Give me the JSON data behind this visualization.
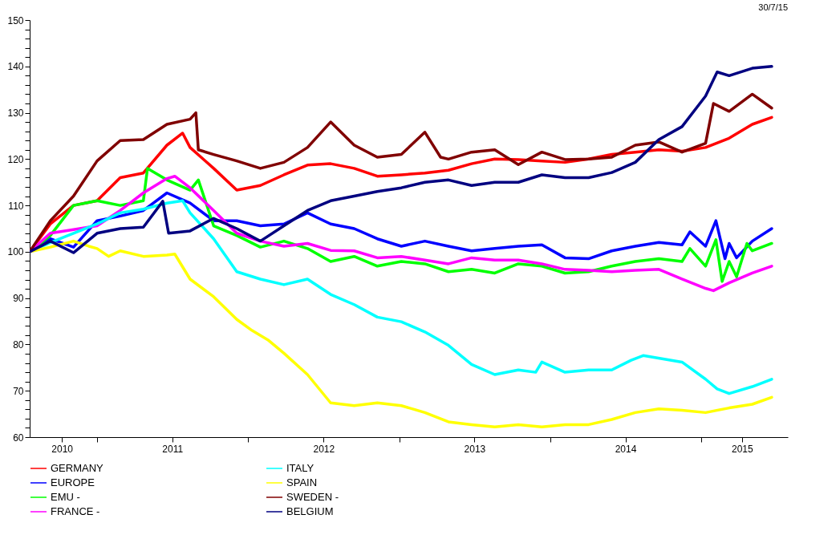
{
  "chart_data": {
    "type": "line",
    "annotations": [
      "30/7/15"
    ],
    "xlim": [
      "2010-07-22",
      "2015-07-30"
    ],
    "xticks": [
      {
        "value": "2011-01-01",
        "label": null
      },
      {
        "value": "2012-01-01",
        "label": null
      },
      {
        "value": "2013-01-01",
        "label": null
      },
      {
        "value": "2014-01-01",
        "label": null
      },
      {
        "value": "2015-01-01",
        "label": null
      },
      {
        "value": "2010-10-08",
        "label": "2010"
      },
      {
        "value": "2011-07-02",
        "label": "2011"
      },
      {
        "value": "2012-07-02",
        "label": "2012"
      },
      {
        "value": "2013-07-02",
        "label": "2013"
      },
      {
        "value": "2014-07-02",
        "label": "2014"
      },
      {
        "value": "2015-04-10",
        "label": "2015"
      }
    ],
    "ylim": [
      60,
      150
    ],
    "yticks": [
      60,
      {
        "value": 62,
        "label": null
      },
      {
        "value": 64,
        "label": null
      },
      {
        "value": 66,
        "label": null
      },
      {
        "value": 68,
        "label": null
      },
      70,
      {
        "value": 72,
        "label": null
      },
      {
        "value": 74,
        "label": null
      },
      {
        "value": 76,
        "label": null
      },
      {
        "value": 78,
        "label": null
      },
      80,
      {
        "value": 82,
        "label": null
      },
      {
        "value": 84,
        "label": null
      },
      {
        "value": 86,
        "label": null
      },
      {
        "value": 88,
        "label": null
      },
      90,
      {
        "value": 92,
        "label": null
      },
      {
        "value": 94,
        "label": null
      },
      {
        "value": 96,
        "label": null
      },
      {
        "value": 98,
        "label": null
      },
      100,
      {
        "value": 102,
        "label": null
      },
      {
        "value": 104,
        "label": null
      },
      {
        "value": 106,
        "label": null
      },
      {
        "value": 108,
        "label": null
      },
      110,
      {
        "value": 112,
        "label": null
      },
      {
        "value": 114,
        "label": null
      },
      {
        "value": 116,
        "label": null
      },
      {
        "value": 118,
        "label": null
      },
      120,
      {
        "value": 122,
        "label": null
      },
      {
        "value": 124,
        "label": null
      },
      {
        "value": 126,
        "label": null
      },
      {
        "value": 128,
        "label": null
      },
      130,
      {
        "value": 132,
        "label": null
      },
      {
        "value": 134,
        "label": null
      },
      {
        "value": 136,
        "label": null
      },
      {
        "value": 138,
        "label": null
      },
      140,
      {
        "value": 142,
        "label": null
      },
      {
        "value": 144,
        "label": null
      },
      {
        "value": 146,
        "label": null
      },
      {
        "value": 148,
        "label": null
      },
      150
    ],
    "grid": false,
    "legend": "bottom",
    "series": [
      {
        "name": "GERMANY",
        "color": "#ff0000",
        "x": [
          "2010-07-22",
          "2010-09-10",
          "2010-11-05",
          "2011-01-01",
          "2011-02-26",
          "2011-04-23",
          "2011-06-19",
          "2011-07-27",
          "2011-08-14",
          "2011-10-10",
          "2011-12-05",
          "2012-01-31",
          "2012-03-28",
          "2012-05-24",
          "2012-07-19",
          "2012-09-14",
          "2012-11-09",
          "2013-01-06",
          "2013-03-04",
          "2013-04-30",
          "2013-06-25",
          "2013-08-20",
          "2013-10-16",
          "2013-12-12",
          "2014-02-06",
          "2014-04-04",
          "2014-05-30",
          "2014-07-26",
          "2014-09-21",
          "2014-11-16",
          "2015-01-12",
          "2015-03-10",
          "2015-05-05",
          "2015-06-21"
        ],
        "values": [
          100,
          106,
          110,
          111,
          116,
          117,
          123,
          125.6,
          122.5,
          118,
          113.3,
          114.3,
          116.6,
          118.7,
          119,
          118,
          116.3,
          116.6,
          117,
          117.6,
          119,
          120,
          119.9,
          119.6,
          119.3,
          120,
          121,
          121.5,
          122,
          121.7,
          122.5,
          124.5,
          127.5,
          129
        ]
      },
      {
        "name": "EUROPE",
        "color": "#0000ff",
        "x": [
          "2010-07-22",
          "2010-09-10",
          "2010-11-05",
          "2011-01-01",
          "2011-02-26",
          "2011-04-23",
          "2011-06-19",
          "2011-08-14",
          "2011-10-10",
          "2011-12-05",
          "2012-01-31",
          "2012-03-28",
          "2012-05-24",
          "2012-07-19",
          "2012-09-14",
          "2012-11-09",
          "2013-01-06",
          "2013-03-04",
          "2013-04-30",
          "2013-06-25",
          "2013-08-20",
          "2013-10-16",
          "2013-12-12",
          "2014-02-06",
          "2014-04-04",
          "2014-05-30",
          "2014-07-26",
          "2014-09-21",
          "2014-11-16",
          "2014-12-05",
          "2015-01-12",
          "2015-02-06",
          "2015-02-28",
          "2015-03-10",
          "2015-03-28",
          "2015-05-05",
          "2015-06-21"
        ],
        "values": [
          100,
          102.8,
          101,
          106.7,
          107.7,
          108.9,
          112.7,
          110.5,
          106.7,
          106.7,
          105.6,
          106,
          108.4,
          106,
          105,
          102.8,
          101.2,
          102.3,
          101.2,
          100.2,
          100.7,
          101.2,
          101.5,
          98.7,
          98.5,
          100.2,
          101.2,
          102,
          101.5,
          104.3,
          101.2,
          106.7,
          98.5,
          101.8,
          98.7,
          102.3,
          105
        ]
      },
      {
        "name": "EMU -",
        "color": "#00ff00",
        "x": [
          "2010-07-22",
          "2010-09-10",
          "2010-11-05",
          "2011-01-01",
          "2011-02-26",
          "2011-04-23",
          "2011-05-03",
          "2011-06-19",
          "2011-08-14",
          "2011-09-03",
          "2011-10-10",
          "2011-12-05",
          "2012-01-31",
          "2012-03-28",
          "2012-05-24",
          "2012-07-19",
          "2012-09-14",
          "2012-11-09",
          "2013-01-06",
          "2013-03-04",
          "2013-04-30",
          "2013-06-25",
          "2013-08-20",
          "2013-10-16",
          "2013-12-12",
          "2014-02-06",
          "2014-04-04",
          "2014-05-30",
          "2014-07-26",
          "2014-09-21",
          "2014-11-16",
          "2014-12-05",
          "2015-01-12",
          "2015-02-06",
          "2015-02-21",
          "2015-03-10",
          "2015-03-28",
          "2015-04-22",
          "2015-05-05",
          "2015-06-21"
        ],
        "values": [
          100,
          103.5,
          110,
          111,
          110,
          111,
          118,
          115.5,
          113.3,
          115.5,
          105.6,
          103.5,
          101,
          102.3,
          100.7,
          97.9,
          99,
          96.9,
          97.9,
          97.4,
          95.7,
          96.2,
          95.4,
          97.4,
          96.9,
          95.4,
          95.7,
          96.9,
          97.9,
          98.5,
          97.9,
          100.7,
          96.9,
          102.6,
          93.6,
          97.9,
          94.6,
          101.8,
          100.2,
          101.8
        ]
      },
      {
        "name": "FRANCE -",
        "color": "#ff00ff",
        "x": [
          "2010-07-22",
          "2010-09-10",
          "2010-11-05",
          "2011-01-01",
          "2011-02-26",
          "2011-04-23",
          "2011-06-19",
          "2011-07-08",
          "2011-08-14",
          "2011-10-10",
          "2011-12-05",
          "2012-01-31",
          "2012-03-28",
          "2012-05-24",
          "2012-07-19",
          "2012-09-14",
          "2012-11-09",
          "2013-01-06",
          "2013-03-04",
          "2013-04-30",
          "2013-06-25",
          "2013-08-20",
          "2013-10-16",
          "2013-12-12",
          "2014-02-06",
          "2014-04-04",
          "2014-05-30",
          "2014-07-26",
          "2014-09-21",
          "2014-11-16",
          "2015-01-12",
          "2015-01-31",
          "2015-03-10",
          "2015-05-05",
          "2015-06-21"
        ],
        "values": [
          100,
          104,
          104.8,
          105.6,
          108.9,
          112.7,
          115.8,
          116.3,
          113.8,
          108.9,
          104,
          102.3,
          101.2,
          101.8,
          100.3,
          100.2,
          98.7,
          99,
          98.2,
          97.4,
          98.7,
          98.2,
          98.2,
          97.4,
          96.2,
          96,
          95.7,
          96,
          96.2,
          94.1,
          92.1,
          91.6,
          93.3,
          95.4,
          96.9
        ]
      },
      {
        "name": "ITALY",
        "color": "#00ffff",
        "x": [
          "2010-07-22",
          "2010-09-10",
          "2010-11-05",
          "2011-01-01",
          "2011-02-26",
          "2011-04-23",
          "2011-06-19",
          "2011-07-27",
          "2011-08-14",
          "2011-10-10",
          "2011-12-05",
          "2012-01-31",
          "2012-03-28",
          "2012-05-24",
          "2012-07-19",
          "2012-09-14",
          "2012-11-09",
          "2013-01-06",
          "2013-03-04",
          "2013-04-30",
          "2013-06-25",
          "2013-08-20",
          "2013-10-16",
          "2013-11-27",
          "2013-12-12",
          "2014-02-06",
          "2014-04-04",
          "2014-05-30",
          "2014-07-16",
          "2014-08-14",
          "2014-11-16",
          "2015-01-12",
          "2015-02-09",
          "2015-03-10",
          "2015-05-05",
          "2015-06-21"
        ],
        "values": [
          100,
          102,
          104,
          106,
          108.4,
          109.2,
          110.5,
          111,
          108.4,
          102.8,
          95.7,
          94.1,
          92.9,
          94.1,
          90.8,
          88.6,
          85.9,
          84.9,
          82.7,
          79.8,
          75.7,
          73.5,
          74.5,
          74,
          76.2,
          74,
          74.5,
          74.5,
          76.6,
          77.6,
          76.2,
          72.5,
          70.4,
          69.4,
          70.9,
          72.5
        ]
      },
      {
        "name": "SPAIN",
        "color": "#ffff00",
        "x": [
          "2010-07-22",
          "2010-09-10",
          "2010-11-05",
          "2010-12-12",
          "2011-01-01",
          "2011-01-29",
          "2011-02-26",
          "2011-04-23",
          "2011-06-19",
          "2011-07-08",
          "2011-08-14",
          "2011-10-10",
          "2011-12-05",
          "2012-01-11",
          "2012-02-18",
          "2012-03-28",
          "2012-05-24",
          "2012-07-19",
          "2012-09-14",
          "2012-11-09",
          "2013-01-06",
          "2013-03-04",
          "2013-04-30",
          "2013-06-25",
          "2013-08-20",
          "2013-10-16",
          "2013-12-12",
          "2014-02-06",
          "2014-04-04",
          "2014-05-30",
          "2014-07-26",
          "2014-09-21",
          "2014-11-16",
          "2015-01-12",
          "2015-03-10",
          "2015-05-05",
          "2015-06-21"
        ],
        "values": [
          100,
          101,
          102.3,
          101.2,
          100.7,
          99,
          100.2,
          99,
          99.3,
          99.5,
          94.1,
          90.3,
          85.4,
          83,
          81,
          78.1,
          73.5,
          67.4,
          66.8,
          67.4,
          66.8,
          65.3,
          63.3,
          62.7,
          62.2,
          62.7,
          62.2,
          62.7,
          62.7,
          63.8,
          65.3,
          66.1,
          65.8,
          65.3,
          66.3,
          67.1,
          68.6
        ]
      },
      {
        "name": "SWEDEN -",
        "color": "#800000",
        "x": [
          "2010-07-22",
          "2010-09-10",
          "2010-11-05",
          "2011-01-01",
          "2011-02-26",
          "2011-04-23",
          "2011-06-19",
          "2011-08-14",
          "2011-08-28",
          "2011-09-03",
          "2011-10-10",
          "2011-12-05",
          "2012-01-31",
          "2012-03-28",
          "2012-05-24",
          "2012-07-19",
          "2012-09-14",
          "2012-11-09",
          "2013-01-06",
          "2013-03-04",
          "2013-04-11",
          "2013-04-30",
          "2013-06-25",
          "2013-08-20",
          "2013-10-16",
          "2013-12-12",
          "2014-02-06",
          "2014-04-04",
          "2014-05-30",
          "2014-07-26",
          "2014-09-21",
          "2014-11-16",
          "2015-01-12",
          "2015-01-31",
          "2015-03-10",
          "2015-05-05",
          "2015-06-21"
        ],
        "values": [
          100,
          106.7,
          112,
          119.6,
          124,
          124.2,
          127.5,
          128.6,
          130,
          122,
          121,
          119.6,
          118,
          119.3,
          122.5,
          128,
          123,
          120.4,
          121,
          125.8,
          120.4,
          120,
          121.5,
          122,
          118.8,
          121.5,
          119.9,
          120,
          120.4,
          123,
          123.7,
          121.5,
          123.4,
          132,
          130.3,
          134,
          131
        ]
      },
      {
        "name": "BELGIUM",
        "color": "#000080",
        "x": [
          "2010-07-22",
          "2010-09-10",
          "2010-11-05",
          "2011-01-01",
          "2011-02-26",
          "2011-04-23",
          "2011-06-09",
          "2011-06-23",
          "2011-08-14",
          "2011-10-10",
          "2011-12-05",
          "2012-01-31",
          "2012-03-28",
          "2012-05-24",
          "2012-07-19",
          "2012-09-14",
          "2012-11-09",
          "2013-01-06",
          "2013-03-04",
          "2013-04-30",
          "2013-06-25",
          "2013-08-20",
          "2013-10-16",
          "2013-12-12",
          "2014-02-06",
          "2014-04-04",
          "2014-05-30",
          "2014-07-26",
          "2014-09-21",
          "2014-11-16",
          "2015-01-12",
          "2015-02-09",
          "2015-03-10",
          "2015-05-05",
          "2015-06-21"
        ],
        "values": [
          100,
          102.3,
          99.8,
          104,
          105,
          105.3,
          110.9,
          104,
          104.5,
          107.2,
          105,
          102.3,
          105.6,
          108.9,
          111,
          112,
          113,
          113.8,
          115,
          115.5,
          114.3,
          115,
          115,
          116.6,
          116,
          116,
          117.1,
          119.3,
          124.2,
          127,
          133.6,
          138.8,
          138,
          139.6,
          140
        ]
      }
    ]
  }
}
